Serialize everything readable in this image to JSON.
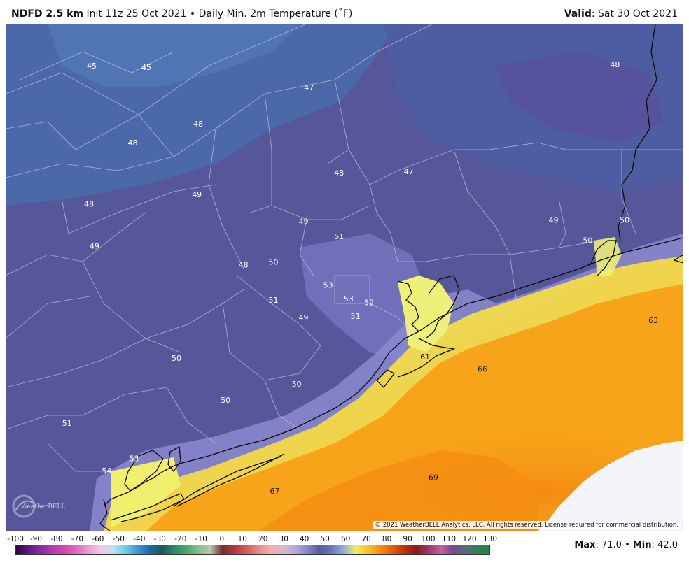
{
  "header": {
    "model": "NDFD 2.5 km",
    "init": "Init 11z 25 Oct 2021",
    "separator": "•",
    "field": "Daily Min. 2m Temperature (˚F)",
    "valid_label": "Valid",
    "valid_value": ": Sat 30 Oct 2021"
  },
  "map": {
    "copyright": "© 2021 WeatherBELL Analytics, LLC. All rights reserved. License required for commercial distribution.",
    "logo_text": "WeatherBELL",
    "temperature_labels": [
      {
        "value": "45",
        "lon": -97.35,
        "lat": 31.52
      },
      {
        "value": "45",
        "lon": -96.95,
        "lat": 31.51
      },
      {
        "value": "47",
        "lon": -95.76,
        "lat": 31.36
      },
      {
        "value": "48",
        "lon": -93.52,
        "lat": 31.53
      },
      {
        "value": "48",
        "lon": -96.57,
        "lat": 31.09
      },
      {
        "value": "48",
        "lon": -97.05,
        "lat": 30.95
      },
      {
        "value": "48",
        "lon": -95.54,
        "lat": 30.73
      },
      {
        "value": "47",
        "lon": -95.03,
        "lat": 30.74
      },
      {
        "value": "49",
        "lon": -96.58,
        "lat": 30.57
      },
      {
        "value": "48",
        "lon": -97.37,
        "lat": 30.5
      },
      {
        "value": "49",
        "lon": -95.8,
        "lat": 30.37
      },
      {
        "value": "51",
        "lon": -95.54,
        "lat": 30.26
      },
      {
        "value": "49",
        "lon": -97.33,
        "lat": 30.19
      },
      {
        "value": "49",
        "lon": -93.97,
        "lat": 30.38
      },
      {
        "value": "50",
        "lon": -93.45,
        "lat": 30.38
      },
      {
        "value": "50",
        "lon": -93.72,
        "lat": 30.23
      },
      {
        "value": "48",
        "lon": -96.24,
        "lat": 30.05
      },
      {
        "value": "50",
        "lon": -96.02,
        "lat": 30.07
      },
      {
        "value": "53",
        "lon": -95.62,
        "lat": 29.9
      },
      {
        "value": "53",
        "lon": -95.47,
        "lat": 29.8
      },
      {
        "value": "52",
        "lon": -95.32,
        "lat": 29.77
      },
      {
        "value": "51",
        "lon": -96.02,
        "lat": 29.79
      },
      {
        "value": "49",
        "lon": -95.8,
        "lat": 29.66
      },
      {
        "value": "51",
        "lon": -95.42,
        "lat": 29.67
      },
      {
        "value": "63",
        "lon": -93.24,
        "lat": 29.64
      },
      {
        "value": "61",
        "lon": -94.91,
        "lat": 29.37
      },
      {
        "value": "66",
        "lon": -94.49,
        "lat": 29.28
      },
      {
        "value": "50",
        "lon": -96.73,
        "lat": 29.36
      },
      {
        "value": "50",
        "lon": -95.85,
        "lat": 29.17
      },
      {
        "value": "50",
        "lon": -96.37,
        "lat": 29.05
      },
      {
        "value": "51",
        "lon": -97.53,
        "lat": 28.88
      },
      {
        "value": "53",
        "lon": -97.04,
        "lat": 28.62
      },
      {
        "value": "54",
        "lon": -97.24,
        "lat": 28.53
      },
      {
        "value": "69",
        "lon": -94.85,
        "lat": 28.48
      },
      {
        "value": "67",
        "lon": -96.01,
        "lat": 28.38
      }
    ]
  },
  "colorbar": {
    "ticks": [
      "-100",
      "-90",
      "-80",
      "-70",
      "-60",
      "-50",
      "-40",
      "-30",
      "-20",
      "-10",
      "0",
      "10",
      "20",
      "30",
      "40",
      "50",
      "60",
      "70",
      "80",
      "90",
      "100",
      "110",
      "120",
      "130"
    ],
    "range_f": [
      -100,
      130
    ]
  },
  "stats": {
    "max_label": "Max",
    "max_value": ": 71.0",
    "separator": "•",
    "min_label": "Min",
    "min_value": ": 42.0"
  },
  "colors": {
    "cold_fill": "#56579a",
    "north_fill": "#4a68a8",
    "warm_yellow": "#f2f25a",
    "warm_orange": "#f7a41a",
    "deep_orange": "#f58a10",
    "no_data": "#f3f5fb",
    "coastline": "#0a0a0a",
    "county_lines": "#c9c9dc"
  }
}
